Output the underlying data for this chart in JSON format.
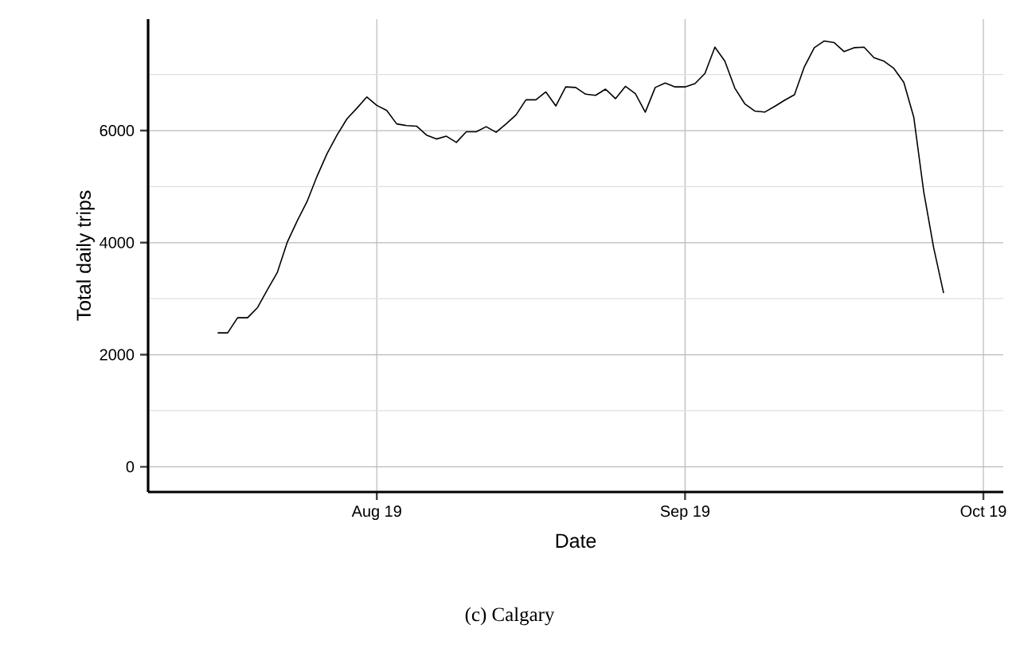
{
  "chart_data": {
    "type": "line",
    "xlabel": "Date",
    "ylabel": "Total daily trips",
    "annotations": [
      "(c) Calgary"
    ],
    "color": "#000000",
    "grid": true,
    "x": [
      "2019-07-16",
      "2019-07-17",
      "2019-07-18",
      "2019-07-19",
      "2019-07-20",
      "2019-07-21",
      "2019-07-22",
      "2019-07-23",
      "2019-07-24",
      "2019-07-25",
      "2019-07-26",
      "2019-07-27",
      "2019-07-28",
      "2019-07-29",
      "2019-07-30",
      "2019-07-31",
      "2019-08-01",
      "2019-08-02",
      "2019-08-03",
      "2019-08-04",
      "2019-08-05",
      "2019-08-06",
      "2019-08-07",
      "2019-08-08",
      "2019-08-09",
      "2019-08-10",
      "2019-08-11",
      "2019-08-12",
      "2019-08-13",
      "2019-08-14",
      "2019-08-15",
      "2019-08-16",
      "2019-08-17",
      "2019-08-18",
      "2019-08-19",
      "2019-08-20",
      "2019-08-21",
      "2019-08-22",
      "2019-08-23",
      "2019-08-24",
      "2019-08-25",
      "2019-08-26",
      "2019-08-27",
      "2019-08-28",
      "2019-08-29",
      "2019-08-30",
      "2019-08-31",
      "2019-09-01",
      "2019-09-02",
      "2019-09-03",
      "2019-09-04",
      "2019-09-05",
      "2019-09-06",
      "2019-09-07",
      "2019-09-08",
      "2019-09-09",
      "2019-09-10",
      "2019-09-11",
      "2019-09-12",
      "2019-09-13",
      "2019-09-14",
      "2019-09-15",
      "2019-09-16",
      "2019-09-17",
      "2019-09-18",
      "2019-09-19",
      "2019-09-20",
      "2019-09-21",
      "2019-09-22",
      "2019-09-23",
      "2019-09-24",
      "2019-09-25",
      "2019-09-26",
      "2019-09-27"
    ],
    "values": [
      2390,
      2390,
      2660,
      2660,
      2840,
      3160,
      3470,
      4010,
      4390,
      4740,
      5190,
      5590,
      5920,
      6210,
      6400,
      6600,
      6450,
      6360,
      6120,
      6090,
      6080,
      5920,
      5850,
      5900,
      5790,
      5980,
      5980,
      6070,
      5970,
      6120,
      6280,
      6550,
      6550,
      6690,
      6440,
      6780,
      6770,
      6650,
      6630,
      6740,
      6570,
      6790,
      6660,
      6330,
      6770,
      6850,
      6780,
      6780,
      6840,
      7020,
      7490,
      7240,
      6760,
      6480,
      6350,
      6330,
      6430,
      6540,
      6640,
      7140,
      7480,
      7600,
      7570,
      7410,
      7480,
      7490,
      7300,
      7240,
      7110,
      6860,
      6240,
      4910,
      3910,
      3100
    ],
    "xlim": [
      "2019-07-09",
      "2019-10-03"
    ],
    "xticks": [
      {
        "value": "2019-08-01",
        "label": "Aug 19"
      },
      {
        "value": "2019-09-01",
        "label": "Sep 19"
      },
      {
        "value": "2019-10-01",
        "label": "Oct 19"
      }
    ],
    "ylim": [
      -450,
      7990
    ],
    "yticks": [
      0,
      2000,
      4000,
      6000
    ]
  }
}
